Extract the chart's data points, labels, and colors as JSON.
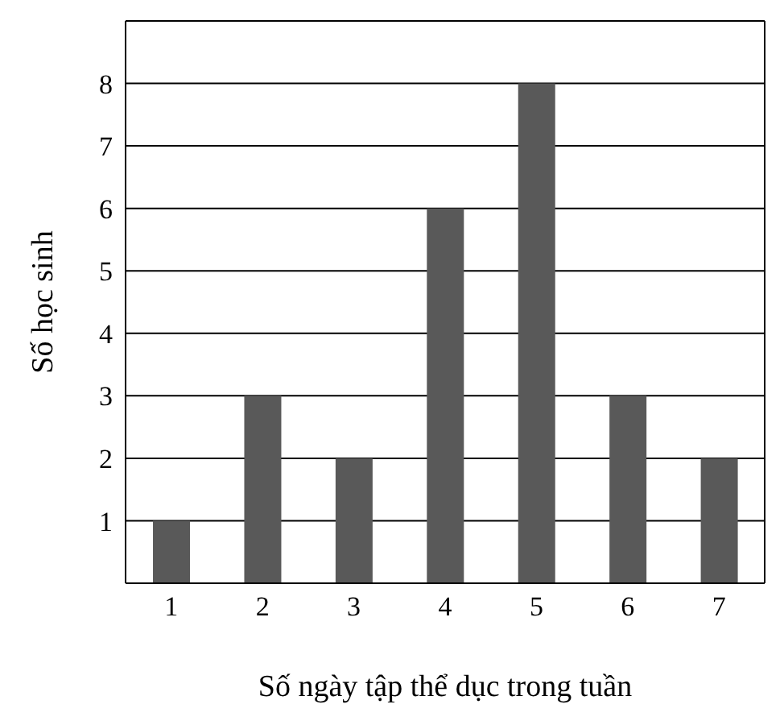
{
  "chart_data": {
    "type": "bar",
    "categories": [
      "1",
      "2",
      "3",
      "4",
      "5",
      "6",
      "7"
    ],
    "values": [
      1,
      3,
      2,
      6,
      8,
      3,
      2
    ],
    "color": "#595959",
    "xlabel": "Số ngày tập thể dục trong tuần",
    "ylabel": "Số học sinh",
    "ylim": [
      0,
      9
    ],
    "yticks": [
      1,
      2,
      3,
      4,
      5,
      6,
      7,
      8
    ],
    "grid": "y"
  }
}
